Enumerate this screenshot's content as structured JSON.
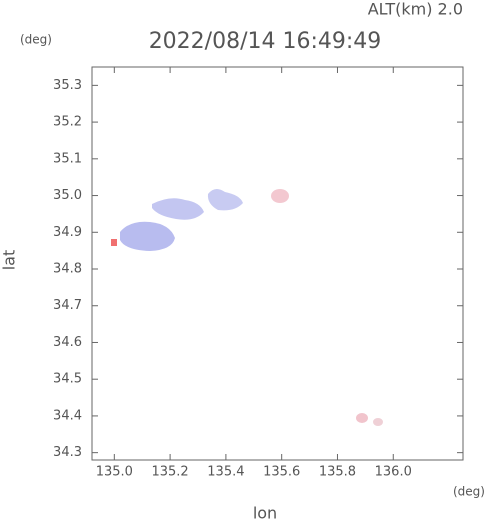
{
  "chart_data": {
    "type": "map",
    "title": "2022/08/14 16:49:49",
    "subtitle": "ALT(km) 2.0",
    "xlabel": "lon",
    "ylabel": "lat",
    "x_unit": "(deg)",
    "y_unit": "(deg)",
    "xlim": [
      134.92,
      136.25
    ],
    "ylim": [
      34.28,
      35.35
    ],
    "xticks": [
      {
        "value": 135.0,
        "label": "135.0"
      },
      135.2,
      135.4,
      135.6,
      135.8,
      {
        "value": 136.0,
        "label": "136.0"
      }
    ],
    "yticks": [
      34.3,
      34.4,
      34.5,
      34.6,
      34.7,
      34.8,
      34.9,
      {
        "value": 35.0,
        "label": "35.0"
      },
      35.1,
      35.2,
      35.3
    ]
  }
}
